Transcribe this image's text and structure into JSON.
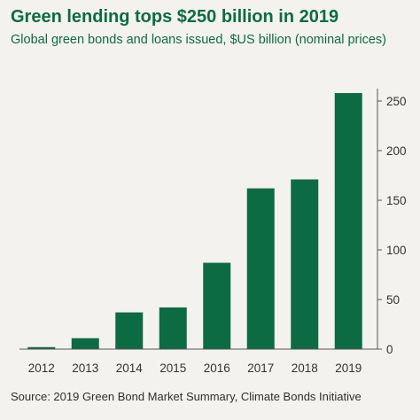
{
  "header": {
    "title": "Green lending tops $250 billion in 2019",
    "subtitle": "Global green bonds and loans issued, $US billion (nominal prices)"
  },
  "footer": {
    "source": "Source:  2019 Green Bond Market Summary, Climate Bonds Initiative"
  },
  "colors": {
    "bar": "#0d6b43",
    "accent_text": "#0d6b43",
    "background": "#f3f2ee"
  },
  "chart_data": {
    "type": "bar",
    "title": "Green lending tops $250 billion in 2019",
    "subtitle": "Global green bonds and loans issued, $US billion (nominal prices)",
    "categories": [
      "2012",
      "2013",
      "2014",
      "2015",
      "2016",
      "2017",
      "2018",
      "2019"
    ],
    "values": [
      2,
      11,
      37,
      42,
      87,
      162,
      171,
      258
    ],
    "xlabel": "",
    "ylabel": "",
    "ylim": [
      0,
      250
    ],
    "yticks": [
      0,
      50,
      100,
      150,
      200,
      250
    ],
    "y_axis_side": "right",
    "grid": false,
    "legend": "none"
  }
}
